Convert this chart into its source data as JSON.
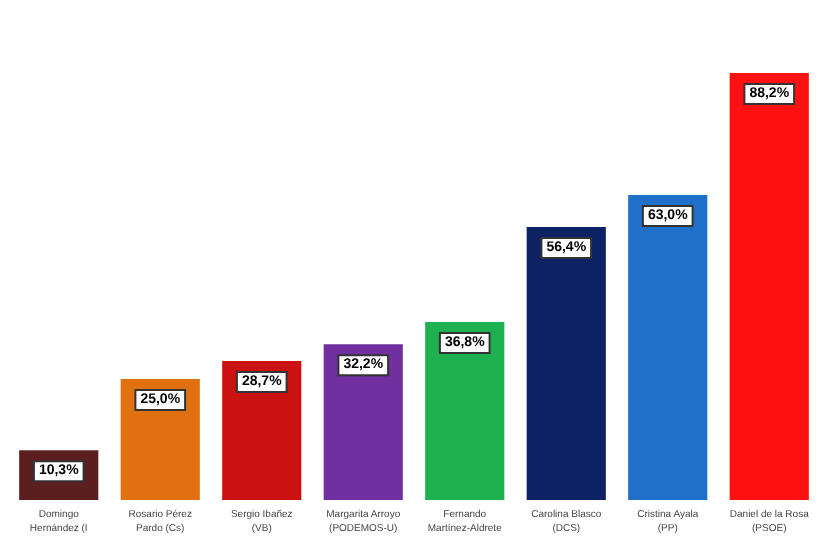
{
  "chart_data": {
    "type": "bar",
    "categories": [
      "Domingo\nHernández (I",
      "Rosario Pérez\nPardo (Cs)",
      "Sergio Ibañez\n(VB)",
      "Margarita Arroyo\n(PODEMOS-U)",
      "Fernando\nMartínez-Aldrete",
      "Carolina Blasco\n(DCS)",
      "Cristina Ayala\n(PP)",
      "Daniel de la Rosa\n(PSOE)"
    ],
    "values": [
      10.3,
      25.0,
      28.7,
      32.2,
      36.8,
      56.4,
      63.0,
      88.2
    ],
    "colors": [
      "#5c1f1f",
      "#e07010",
      "#cc1111",
      "#7030a0",
      "#1fb050",
      "#0c2262",
      "#1f70c8",
      "#ff1111"
    ],
    "value_labels": [
      "10,3%",
      "25,0%",
      "28,7%",
      "32,2%",
      "36,8%",
      "56,4%",
      "63,0%",
      "88,2%"
    ]
  }
}
